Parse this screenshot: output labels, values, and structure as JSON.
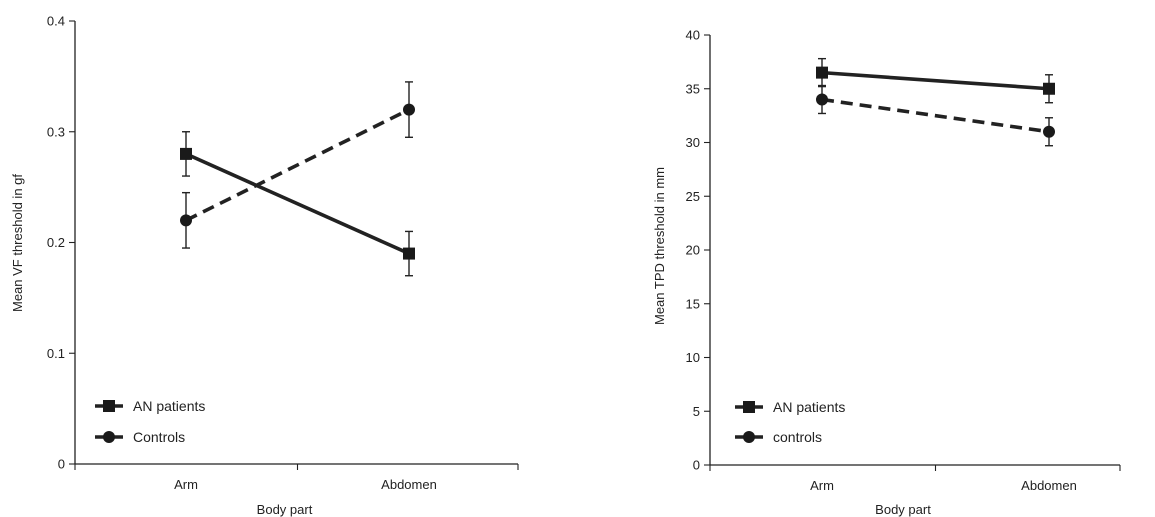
{
  "chart_data": [
    {
      "type": "line",
      "categories": [
        "Arm",
        "Abdomen"
      ],
      "xlabel": "Body part",
      "ylabel": "Mean VF threshold in gf",
      "ylim": [
        0,
        0.4
      ],
      "yticks": [
        0,
        0.1,
        0.2,
        0.3,
        0.4
      ],
      "ytick_labels": [
        "0",
        "0.1",
        "0.2",
        "0.3",
        "0.4"
      ],
      "grid": false,
      "legend_position": "bottom-left",
      "series": [
        {
          "name": "AN patients",
          "values": [
            0.28,
            0.19
          ],
          "error": [
            0.02,
            0.02
          ],
          "marker": "square",
          "linestyle": "solid"
        },
        {
          "name": "Controls",
          "values": [
            0.22,
            0.32
          ],
          "error": [
            0.025,
            0.025
          ],
          "marker": "circle",
          "linestyle": "dashed"
        }
      ]
    },
    {
      "type": "line",
      "categories": [
        "Arm",
        "Abdomen"
      ],
      "xlabel": "Body part",
      "ylabel": "Mean TPD threshold in mm",
      "ylim": [
        0,
        40
      ],
      "yticks": [
        0,
        5,
        10,
        15,
        20,
        25,
        30,
        35,
        40
      ],
      "ytick_labels": [
        "0",
        "5",
        "10",
        "15",
        "20",
        "25",
        "30",
        "35",
        "40"
      ],
      "grid": false,
      "legend_position": "bottom-left",
      "series": [
        {
          "name": "AN patients",
          "values": [
            36.5,
            35.0
          ],
          "error": [
            1.3,
            1.3
          ],
          "marker": "square",
          "linestyle": "solid"
        },
        {
          "name": "controls",
          "values": [
            34.0,
            31.0
          ],
          "error": [
            1.3,
            1.3
          ],
          "marker": "circle",
          "linestyle": "dashed"
        }
      ]
    }
  ]
}
